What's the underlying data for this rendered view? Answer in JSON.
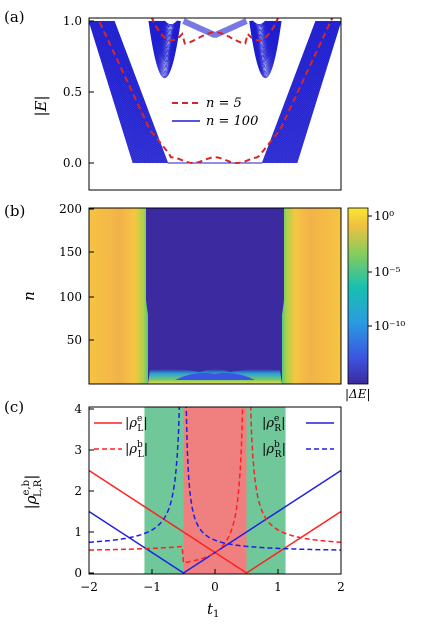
{
  "chart_data": [
    {
      "panel": "(a)",
      "type": "line",
      "ylabel": "|E|",
      "xlim": [
        -2,
        2
      ],
      "ylim": [
        -0.15,
        1.02
      ],
      "yticks": [
        "0.0",
        "0.5",
        "1.0"
      ],
      "legend": {
        "placement": "center-right",
        "items": [
          "n = 5",
          "n = 100"
        ]
      },
      "series": [
        {
          "name": "n = 5",
          "color": "#d62728",
          "style": "dashed",
          "description": "spectrum of size 5"
        },
        {
          "name": "n = 100",
          "color": "#1f1fd0",
          "style": "solid",
          "description": "dense fan of bands"
        }
      ]
    },
    {
      "panel": "(b)",
      "type": "heatmap",
      "ylabel": "n",
      "xlim": [
        -2,
        2
      ],
      "ylim": [
        1,
        200
      ],
      "yticks": [
        "50",
        "100",
        "150",
        "200"
      ],
      "colorbar": {
        "label": "|ΔE|",
        "ticks": [
          "10⁰",
          "10⁻⁵",
          "10⁻¹⁰"
        ],
        "scale": "log"
      }
    },
    {
      "panel": "(c)",
      "type": "line",
      "ylabel": "|ρ^{e,b}_{L,R}|",
      "xlabel": "t₁",
      "xlim": [
        -2,
        2
      ],
      "ylim": [
        0,
        4.1
      ],
      "xticks": [
        "−2",
        "−1",
        "0",
        "1",
        "2"
      ],
      "yticks": [
        "0",
        "1",
        "2",
        "3",
        "4"
      ],
      "shaded_regions": [
        {
          "x": [
            -1.12,
            -0.5
          ],
          "color": "#6fc79a"
        },
        {
          "x": [
            -0.5,
            0.5
          ],
          "color": "#f08080"
        },
        {
          "x": [
            0.5,
            1.12
          ],
          "color": "#6fc79a"
        }
      ],
      "series": [
        {
          "name": "|ρ^e_L|",
          "color": "#ff2020",
          "style": "solid",
          "x": [
            -2,
            0.5,
            2
          ],
          "y": [
            2.5,
            0,
            1.5
          ]
        },
        {
          "name": "|ρ^b_L|",
          "color": "#ff2020",
          "style": "dashed"
        },
        {
          "name": "|ρ^e_R|",
          "color": "#2020e0",
          "style": "solid",
          "x": [
            -2,
            -0.5,
            2
          ],
          "y": [
            1.5,
            0,
            2.5
          ]
        },
        {
          "name": "|ρ^b_R|",
          "color": "#2020e0",
          "style": "dashed"
        }
      ]
    }
  ],
  "labels": {
    "a": "(a)",
    "b": "(b)",
    "c": "(c)",
    "ya": "|E|",
    "yb": "n",
    "yc_main": "|ρ",
    "xc": "t",
    "cb": "|ΔE|",
    "leg5": "n = 5",
    "leg100": "n = 100",
    "leL": "|ρ",
    "lbL": "|ρ",
    "leR": "|ρ",
    "lbR": "|ρ"
  }
}
